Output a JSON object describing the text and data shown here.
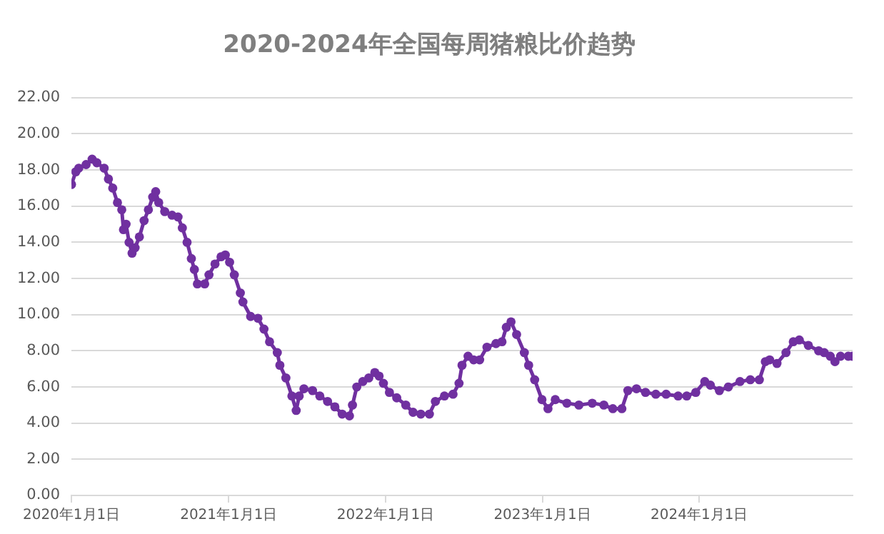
{
  "chart_data": {
    "type": "line",
    "title": "2020-2024年全国每周猪粮比价趋势",
    "marker": "circle",
    "grid": "y",
    "legend": false,
    "xlim": [
      "2020-01-01",
      "2024-12-23"
    ],
    "xticks": [
      {
        "value": "2020-01-01",
        "label": "2020年1月1日"
      },
      {
        "value": "2021-01-01",
        "label": "2021年1月1日"
      },
      {
        "value": "2022-01-01",
        "label": "2022年1月1日"
      },
      {
        "value": "2023-01-01",
        "label": "2023年1月1日"
      },
      {
        "value": "2024-01-01",
        "label": "2024年1月1日"
      }
    ],
    "ylim": [
      0,
      22
    ],
    "yticks": [
      {
        "value": 0,
        "label": "0.00"
      },
      {
        "value": 2,
        "label": "2.00"
      },
      {
        "value": 4,
        "label": "4.00"
      },
      {
        "value": 6,
        "label": "6.00"
      },
      {
        "value": 8,
        "label": "8.00"
      },
      {
        "value": 10,
        "label": "10.00"
      },
      {
        "value": 12,
        "label": "12.00"
      },
      {
        "value": 14,
        "label": "14.00"
      },
      {
        "value": 16,
        "label": "16.00"
      },
      {
        "value": 18,
        "label": "18.00"
      },
      {
        "value": 20,
        "label": "20.00"
      },
      {
        "value": 22,
        "label": "22.00"
      }
    ],
    "series": [
      {
        "color": "#7030a0",
        "x": [
          "2020-01-01",
          "2020-01-11",
          "2020-01-18",
          "2020-02-04",
          "2020-02-18",
          "2020-02-29",
          "2020-03-17",
          "2020-03-27",
          "2020-04-06",
          "2020-04-17",
          "2020-04-27",
          "2020-05-01",
          "2020-05-07",
          "2020-05-14",
          "2020-05-21",
          "2020-05-28",
          "2020-06-07",
          "2020-06-18",
          "2020-06-28",
          "2020-07-08",
          "2020-07-15",
          "2020-07-22",
          "2020-08-05",
          "2020-08-22",
          "2020-09-05",
          "2020-09-15",
          "2020-09-26",
          "2020-10-06",
          "2020-10-13",
          "2020-10-20",
          "2020-11-06",
          "2020-11-16",
          "2020-11-30",
          "2020-12-14",
          "2020-12-24",
          "2021-01-03",
          "2021-01-14",
          "2021-01-28",
          "2021-02-03",
          "2021-02-21",
          "2021-03-10",
          "2021-03-24",
          "2021-04-06",
          "2021-04-24",
          "2021-04-30",
          "2021-05-14",
          "2021-05-28",
          "2021-06-07",
          "2021-06-14",
          "2021-06-25",
          "2021-07-15",
          "2021-08-01",
          "2021-08-19",
          "2021-09-05",
          "2021-09-22",
          "2021-10-09",
          "2021-10-16",
          "2021-10-26",
          "2021-11-09",
          "2021-11-23",
          "2021-12-07",
          "2021-12-17",
          "2021-12-27",
          "2022-01-10",
          "2022-01-27",
          "2022-02-17",
          "2022-03-06",
          "2022-03-24",
          "2022-04-13",
          "2022-04-27",
          "2022-05-18",
          "2022-06-07",
          "2022-06-21",
          "2022-06-28",
          "2022-07-12",
          "2022-07-25",
          "2022-08-08",
          "2022-08-25",
          "2022-09-15",
          "2022-09-29",
          "2022-10-09",
          "2022-10-20",
          "2022-11-02",
          "2022-11-20",
          "2022-11-30",
          "2022-12-14",
          "2022-12-31",
          "2023-01-14",
          "2023-01-31",
          "2023-02-27",
          "2023-03-27",
          "2023-04-27",
          "2023-05-24",
          "2023-06-14",
          "2023-07-05",
          "2023-07-19",
          "2023-08-08",
          "2023-08-29",
          "2023-09-22",
          "2023-10-16",
          "2023-11-13",
          "2023-12-03",
          "2023-12-24",
          "2024-01-14",
          "2024-01-27",
          "2024-02-17",
          "2024-03-09",
          "2024-04-05",
          "2024-04-29",
          "2024-05-20",
          "2024-06-03",
          "2024-06-13",
          "2024-06-30",
          "2024-07-21",
          "2024-08-07",
          "2024-08-21",
          "2024-09-11",
          "2024-10-05",
          "2024-10-18",
          "2024-11-01",
          "2024-11-12",
          "2024-11-25",
          "2024-12-13",
          "2024-12-23"
        ],
        "values": [
          17.2,
          17.9,
          18.1,
          18.3,
          18.6,
          18.4,
          18.1,
          17.5,
          17.0,
          16.2,
          15.8,
          14.7,
          15.0,
          14.0,
          13.4,
          13.7,
          14.3,
          15.2,
          15.8,
          16.5,
          16.8,
          16.2,
          15.7,
          15.5,
          15.4,
          14.8,
          14.0,
          13.1,
          12.5,
          11.7,
          11.7,
          12.2,
          12.8,
          13.2,
          13.3,
          12.9,
          12.2,
          11.2,
          10.7,
          9.9,
          9.8,
          9.2,
          8.5,
          7.9,
          7.2,
          6.5,
          5.5,
          4.7,
          5.5,
          5.9,
          5.8,
          5.5,
          5.2,
          4.9,
          4.5,
          4.4,
          5.0,
          6.0,
          6.3,
          6.5,
          6.8,
          6.6,
          6.2,
          5.7,
          5.4,
          5.0,
          4.6,
          4.5,
          4.5,
          5.2,
          5.5,
          5.6,
          6.2,
          7.2,
          7.7,
          7.5,
          7.5,
          8.2,
          8.4,
          8.5,
          9.3,
          9.6,
          8.9,
          7.9,
          7.2,
          6.4,
          5.3,
          4.8,
          5.3,
          5.1,
          5.0,
          5.1,
          5.0,
          4.8,
          4.8,
          5.8,
          5.9,
          5.7,
          5.6,
          5.6,
          5.5,
          5.5,
          5.7,
          6.3,
          6.1,
          5.8,
          6.0,
          6.3,
          6.4,
          6.4,
          7.4,
          7.5,
          7.3,
          7.9,
          8.5,
          8.6,
          8.3,
          8.0,
          7.9,
          7.7,
          7.4,
          7.7,
          7.7,
          7.7
        ]
      }
    ]
  }
}
